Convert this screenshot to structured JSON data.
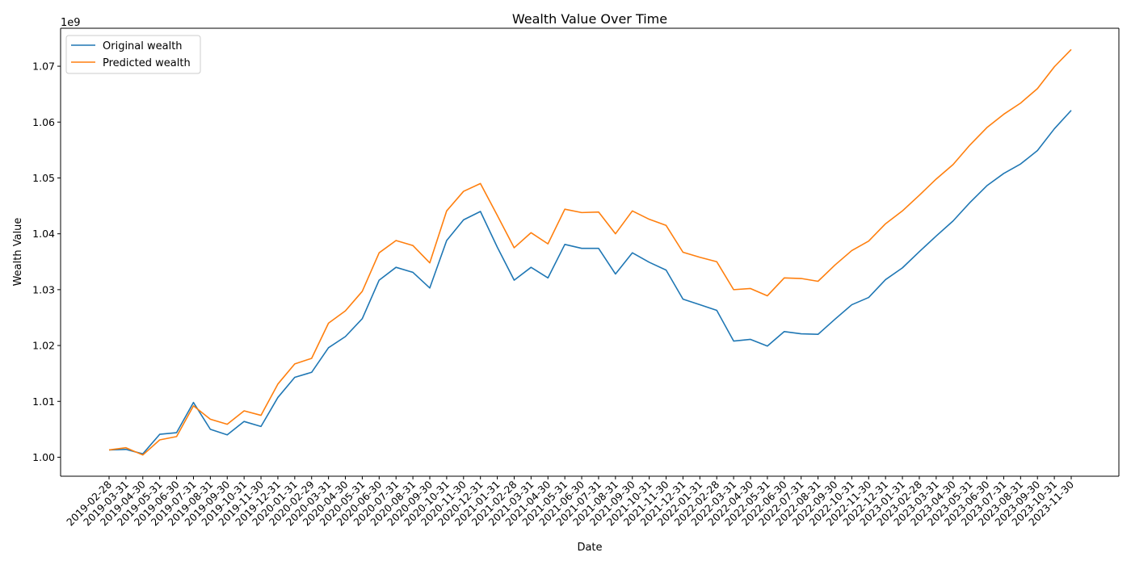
{
  "chart_data": {
    "type": "line",
    "title": "Wealth Value Over Time",
    "xlabel": "Date",
    "ylabel": "Wealth Value",
    "y_offset_label": "1e9",
    "ylim": [
      0.9966,
      1.0768
    ],
    "y_ticks": [
      1.0,
      1.01,
      1.02,
      1.03,
      1.04,
      1.05,
      1.06,
      1.07
    ],
    "y_tick_labels": [
      "1.00",
      "1.01",
      "1.02",
      "1.03",
      "1.04",
      "1.05",
      "1.06",
      "1.07"
    ],
    "grid": false,
    "legend_position": "top-left",
    "x": [
      "2019-02-28",
      "2019-03-31",
      "2019-04-30",
      "2019-05-31",
      "2019-06-30",
      "2019-07-31",
      "2019-08-31",
      "2019-09-30",
      "2019-10-31",
      "2019-11-30",
      "2019-12-31",
      "2020-01-31",
      "2020-02-29",
      "2020-03-31",
      "2020-04-30",
      "2020-05-31",
      "2020-06-30",
      "2020-07-31",
      "2020-08-31",
      "2020-09-30",
      "2020-10-31",
      "2020-11-30",
      "2020-12-31",
      "2021-01-31",
      "2021-02-28",
      "2021-03-31",
      "2021-04-30",
      "2021-05-31",
      "2021-06-30",
      "2021-07-31",
      "2021-08-31",
      "2021-09-30",
      "2021-10-31",
      "2021-11-30",
      "2021-12-31",
      "2022-01-31",
      "2022-02-28",
      "2022-03-31",
      "2022-04-30",
      "2022-05-31",
      "2022-06-30",
      "2022-07-31",
      "2022-08-31",
      "2022-09-30",
      "2022-10-31",
      "2022-11-30",
      "2022-12-31",
      "2023-01-31",
      "2023-02-28",
      "2023-03-31",
      "2023-04-30",
      "2023-05-31",
      "2023-06-30",
      "2023-07-31",
      "2023-08-31",
      "2023-09-30",
      "2023-10-31",
      "2023-11-30"
    ],
    "series": [
      {
        "name": "Original wealth",
        "color": "#1f77b4",
        "values": [
          1.0013,
          1.0014,
          1.0006,
          1.0041,
          1.0044,
          1.0098,
          1.005,
          1.004,
          1.0064,
          1.0055,
          1.0107,
          1.0143,
          1.0152,
          1.0196,
          1.0216,
          1.0248,
          1.0317,
          1.034,
          1.0331,
          1.0303,
          1.0388,
          1.0425,
          1.044,
          1.0376,
          1.0317,
          1.034,
          1.0321,
          1.0381,
          1.0374,
          1.0374,
          1.0328,
          1.0366,
          1.0349,
          1.0335,
          1.0283,
          1.0273,
          1.0263,
          1.0208,
          1.0211,
          1.0199,
          1.0225,
          1.0221,
          1.022,
          1.0247,
          1.0273,
          1.0286,
          1.0318,
          1.0339,
          1.0368,
          1.0396,
          1.0423,
          1.0456,
          1.0486,
          1.0508,
          1.0525,
          1.0549,
          1.0588,
          1.0621
        ]
      },
      {
        "name": "Predicted wealth",
        "color": "#ff7f0e",
        "values": [
          1.0013,
          1.0017,
          1.0004,
          1.0031,
          1.0037,
          1.0092,
          1.0068,
          1.0059,
          1.0083,
          1.0075,
          1.0131,
          1.0167,
          1.0177,
          1.024,
          1.0262,
          1.0297,
          1.0366,
          1.0388,
          1.0379,
          1.0348,
          1.0441,
          1.0476,
          1.049,
          1.0433,
          1.0375,
          1.0402,
          1.0382,
          1.0444,
          1.0438,
          1.0439,
          1.04,
          1.0441,
          1.0426,
          1.0415,
          1.0367,
          1.0358,
          1.035,
          1.03,
          1.0302,
          1.0289,
          1.0321,
          1.032,
          1.0315,
          1.0344,
          1.037,
          1.0387,
          1.0418,
          1.0441,
          1.0469,
          1.0498,
          1.0524,
          1.0559,
          1.059,
          1.0614,
          1.0634,
          1.066,
          1.0699,
          1.073
        ]
      }
    ]
  }
}
